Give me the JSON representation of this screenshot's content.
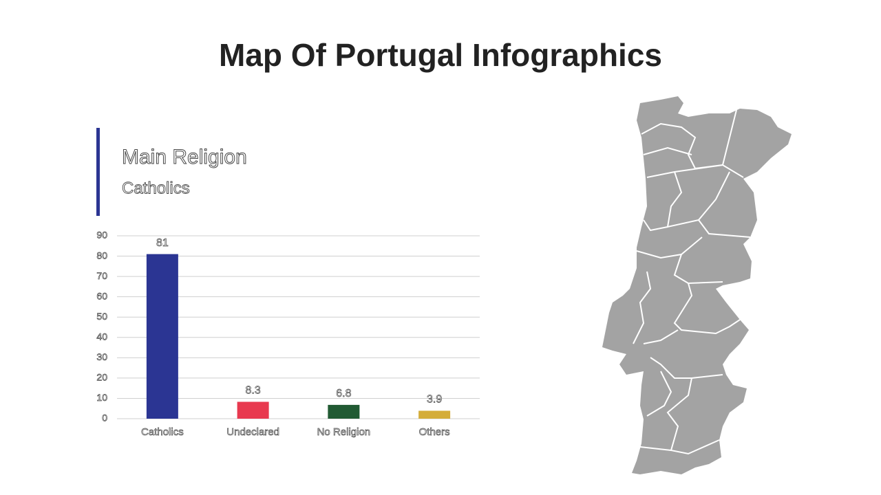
{
  "header": {
    "title": "Map Of Portugal Infographics"
  },
  "panel": {
    "heading": "Main Religion",
    "subheading": "Catholics"
  },
  "chart_data": {
    "type": "bar",
    "categories": [
      "Catholics",
      "Undeclared",
      "No Religion",
      "Others"
    ],
    "values": [
      81,
      8.3,
      6.8,
      3.9
    ],
    "colors": [
      "#2b3593",
      "#e8394f",
      "#215a33",
      "#d4ad3a"
    ],
    "ylim": [
      0,
      90
    ],
    "yticks": [
      0,
      10,
      20,
      30,
      40,
      50,
      60,
      70,
      80,
      90
    ],
    "grid": true
  }
}
